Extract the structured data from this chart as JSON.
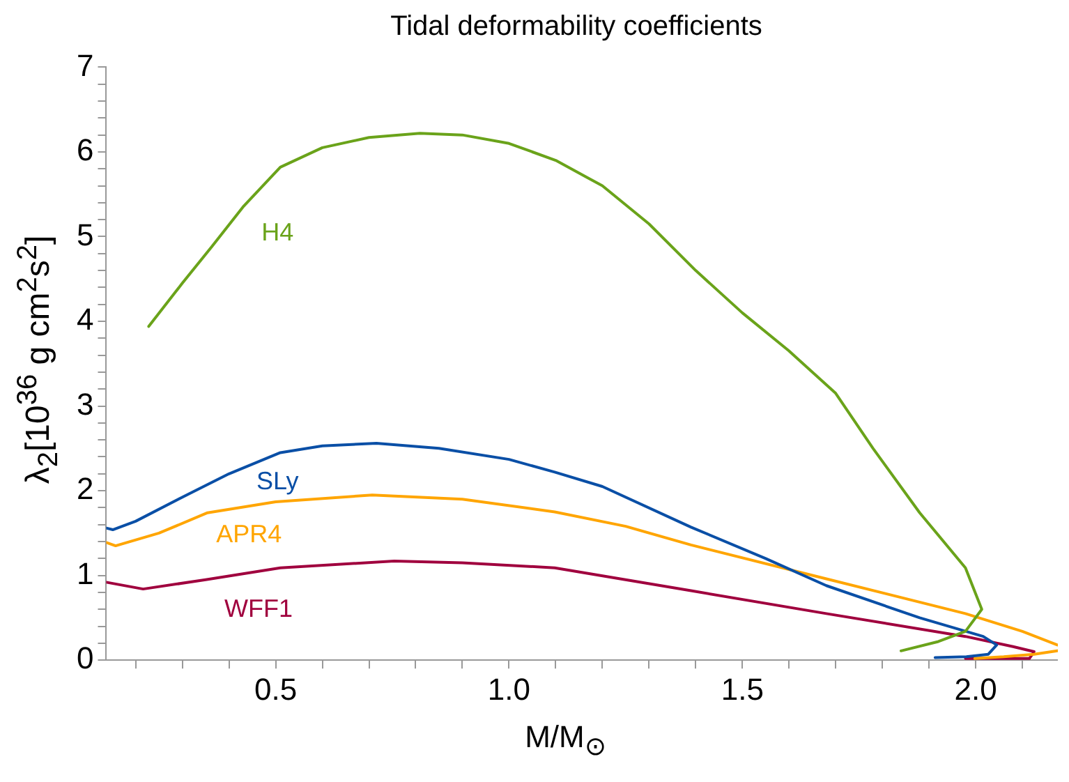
{
  "chart_data": {
    "type": "line",
    "title": "Tidal deformability coefficients",
    "xlabel": "M/M$_{⊙}$",
    "ylabel": "λ$_{2}$[10$^{36}$ g cm$^{2}$s$^{2}$]",
    "xlim": [
      0.137,
      2.176
    ],
    "ylim": [
      0,
      7
    ],
    "xticks": [
      {
        "value": 0.2,
        "label": null
      },
      {
        "value": 0.3,
        "label": null
      },
      {
        "value": 0.4,
        "label": null
      },
      0.5,
      {
        "value": 0.6,
        "label": null
      },
      {
        "value": 0.7,
        "label": null
      },
      {
        "value": 0.8,
        "label": null
      },
      {
        "value": 0.9,
        "label": null
      },
      {
        "value": 1.0,
        "label": "1.0"
      },
      {
        "value": 1.1,
        "label": null
      },
      {
        "value": 1.2,
        "label": null
      },
      {
        "value": 1.3,
        "label": null
      },
      {
        "value": 1.4,
        "label": null
      },
      1.5,
      {
        "value": 1.6,
        "label": null
      },
      {
        "value": 1.7,
        "label": null
      },
      {
        "value": 1.8,
        "label": null
      },
      {
        "value": 1.9,
        "label": null
      },
      {
        "value": 2.0,
        "label": "2.0"
      },
      {
        "value": 2.1,
        "label": null
      }
    ],
    "yticks": [
      0,
      {
        "value": 0.2,
        "label": null
      },
      {
        "value": 0.4,
        "label": null
      },
      {
        "value": 0.6,
        "label": null
      },
      {
        "value": 0.8,
        "label": null
      },
      1,
      {
        "value": 1.2,
        "label": null
      },
      {
        "value": 1.4,
        "label": null
      },
      {
        "value": 1.6,
        "label": null
      },
      {
        "value": 1.8,
        "label": null
      },
      2,
      {
        "value": 2.2,
        "label": null
      },
      {
        "value": 2.4,
        "label": null
      },
      {
        "value": 2.6,
        "label": null
      },
      {
        "value": 2.8,
        "label": null
      },
      3,
      {
        "value": 3.2,
        "label": null
      },
      {
        "value": 3.4,
        "label": null
      },
      {
        "value": 3.6,
        "label": null
      },
      {
        "value": 3.8,
        "label": null
      },
      4,
      {
        "value": 4.2,
        "label": null
      },
      {
        "value": 4.4,
        "label": null
      },
      {
        "value": 4.6,
        "label": null
      },
      {
        "value": 4.8,
        "label": null
      },
      5,
      {
        "value": 5.2,
        "label": null
      },
      {
        "value": 5.4,
        "label": null
      },
      {
        "value": 5.6,
        "label": null
      },
      {
        "value": 5.8,
        "label": null
      },
      6,
      {
        "value": 6.2,
        "label": null
      },
      {
        "value": 6.4,
        "label": null
      },
      {
        "value": 6.6,
        "label": null
      },
      {
        "value": 6.8,
        "label": null
      },
      7
    ],
    "grid": false,
    "legend": false,
    "marker": "none",
    "line_style": "solid",
    "series": [
      {
        "name": "H4",
        "color": "#6aa31a",
        "x": [
          0.228,
          0.3,
          0.363,
          0.43,
          0.51,
          0.6,
          0.7,
          0.809,
          0.9,
          1.0,
          1.1,
          1.2,
          1.3,
          1.4,
          1.5,
          1.6,
          1.7,
          1.78,
          1.88,
          1.978,
          2.013,
          1.978,
          1.92,
          1.84
        ],
        "values": [
          3.94,
          4.45,
          4.88,
          5.35,
          5.82,
          6.05,
          6.17,
          6.22,
          6.2,
          6.1,
          5.9,
          5.6,
          5.15,
          4.6,
          4.1,
          3.65,
          3.15,
          2.5,
          1.74,
          1.09,
          0.6,
          0.34,
          0.22,
          0.11
        ]
      },
      {
        "name": "SLy",
        "color": "#0a4fa6",
        "x": [
          0.137,
          0.151,
          0.2,
          0.313,
          0.4,
          0.51,
          0.6,
          0.716,
          0.85,
          1.0,
          1.098,
          1.2,
          1.39,
          1.55,
          1.68,
          1.88,
          2.016,
          2.045,
          2.027,
          1.98,
          1.913
        ],
        "values": [
          1.56,
          1.54,
          1.64,
          1.96,
          2.2,
          2.45,
          2.53,
          2.56,
          2.5,
          2.37,
          2.22,
          2.05,
          1.57,
          1.2,
          0.88,
          0.5,
          0.28,
          0.18,
          0.07,
          0.04,
          0.03
        ]
      },
      {
        "name": "APR4",
        "color": "#ffa500",
        "x": [
          0.137,
          0.157,
          0.25,
          0.354,
          0.5,
          0.707,
          0.9,
          1.098,
          1.25,
          1.39,
          1.68,
          1.978,
          2.1,
          2.175,
          null,
          2.175,
          2.125,
          2.06,
          1.998
        ],
        "values": [
          1.39,
          1.35,
          1.5,
          1.74,
          1.87,
          1.95,
          1.9,
          1.75,
          1.58,
          1.36,
          0.96,
          0.55,
          0.34,
          0.18,
          null,
          0.11,
          0.07,
          0.04,
          0.02
        ]
      },
      {
        "name": "WFF1",
        "color": "#a0003e",
        "x": [
          0.137,
          0.216,
          0.35,
          0.51,
          0.754,
          0.9,
          1.098,
          1.39,
          1.68,
          1.978,
          2.08,
          2.125,
          2.115,
          2.05,
          1.978
        ],
        "values": [
          0.92,
          0.84,
          0.95,
          1.09,
          1.17,
          1.15,
          1.09,
          0.82,
          0.55,
          0.28,
          0.16,
          0.1,
          0.02,
          0.02,
          0.02
        ]
      }
    ]
  }
}
